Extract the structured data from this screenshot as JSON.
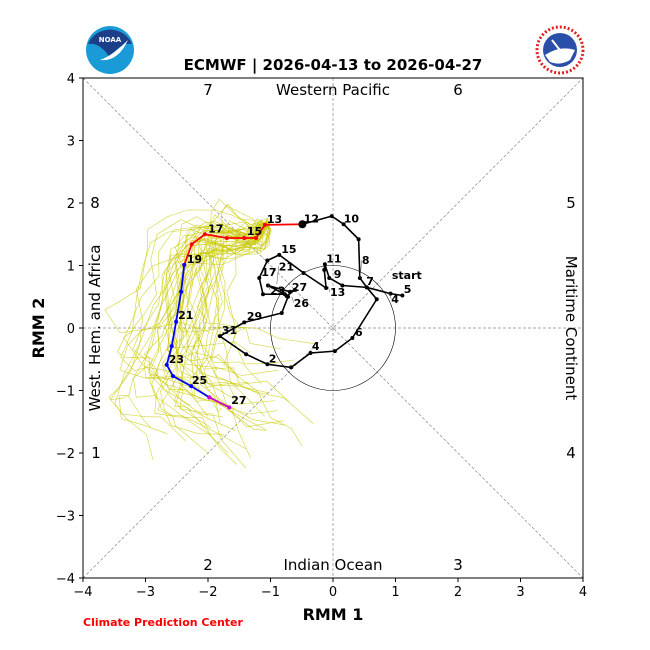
{
  "chart_data": {
    "type": "line",
    "title": "ECMWF | 2026-04-13 to 2026-04-27",
    "xlabel": "RMM 1",
    "ylabel": "RMM 2",
    "xlim": [
      -4,
      4
    ],
    "ylim": [
      -4,
      4
    ],
    "xticks": [
      -4,
      -3,
      -2,
      -1,
      0,
      1,
      2,
      3,
      4
    ],
    "yticks": [
      -4,
      -3,
      -2,
      -1,
      0,
      1,
      2,
      3,
      4
    ],
    "unit_circle_radius": 1,
    "regions": {
      "top": "Western Pacific",
      "bottom": "Indian Ocean",
      "left": "West. Hem. and Africa",
      "right": "Maritime Continent"
    },
    "phase_numbers": {
      "top_left": "7",
      "top_right": "6",
      "left_upper": "8",
      "right_upper": "5",
      "left_lower": "1",
      "right_lower": "4",
      "bottom_left": "2",
      "bottom_right": "3"
    },
    "credit": "Climate Prediction Center",
    "logos": {
      "left": "NOAA",
      "right": "NATIONAL WEATHER SERVICE"
    },
    "colors": {
      "observed": "#000000",
      "forecast_week1": "#ff0000",
      "forecast_week2": "#0000ff",
      "forecast_week3": "#cc00cc",
      "ensemble": "#c8c800"
    },
    "observed": [
      [
        1.11,
        0.52
      ],
      [
        0.92,
        0.55
      ],
      [
        0.54,
        0.65
      ],
      [
        0.15,
        0.68
      ],
      [
        -0.06,
        0.8
      ],
      [
        -0.13,
        1.02
      ],
      [
        -0.14,
        0.93
      ],
      [
        -0.11,
        0.64
      ],
      [
        -0.47,
        0.88
      ],
      [
        -0.86,
        1.17
      ],
      [
        -1.05,
        1.08
      ],
      [
        -1.18,
        0.8
      ],
      [
        -1.12,
        0.54
      ],
      [
        -0.77,
        0.54
      ],
      [
        -1.04,
        0.68
      ],
      [
        -0.69,
        0.58
      ],
      [
        -0.61,
        0.61
      ],
      [
        -0.74,
        0.51
      ],
      [
        -0.72,
        0.5
      ],
      [
        -0.82,
        0.24
      ],
      [
        -1.42,
        0.09
      ],
      [
        -1.81,
        -0.13
      ],
      [
        -1.39,
        -0.42
      ],
      [
        -1.05,
        -0.58
      ],
      [
        -0.67,
        -0.63
      ],
      [
        -0.36,
        -0.4
      ],
      [
        0.03,
        -0.37
      ],
      [
        0.31,
        -0.16
      ],
      [
        0.7,
        0.46
      ],
      [
        0.54,
        0.65
      ],
      [
        0.43,
        0.8
      ],
      [
        0.41,
        1.42
      ],
      [
        0.17,
        1.66
      ],
      [
        -0.02,
        1.79
      ],
      [
        -0.49,
        1.66
      ]
    ],
    "observed_labels": [
      {
        "text": "start",
        "x": 0.91,
        "y": 0.75
      },
      {
        "text": "4",
        "x": 0.9,
        "y": 0.56
      },
      {
        "text": "5",
        "x": 1.1,
        "y": 0.53
      },
      {
        "text": "7",
        "x": 0.5,
        "y": 0.66
      },
      {
        "text": "8",
        "x": 0.43,
        "y": 0.8
      },
      {
        "text": "9",
        "x": -0.02,
        "y": 0.77
      },
      {
        "text": "13",
        "x": -0.08,
        "y": 0.67
      },
      {
        "text": "11",
        "x": -0.14,
        "y": 1.02
      },
      {
        "text": "10",
        "x": 0.14,
        "y": 1.66
      },
      {
        "text": "12",
        "x": -0.5,
        "y": 1.66
      },
      {
        "text": "15",
        "x": -0.86,
        "y": 1.17
      },
      {
        "text": "17",
        "x": -1.18,
        "y": 0.8
      },
      {
        "text": "23",
        "x": -1.04,
        "y": 0.7
      },
      {
        "text": "21",
        "x": -0.9,
        "y": 0.7
      },
      {
        "text": "27",
        "x": -0.69,
        "y": 0.56
      },
      {
        "text": "26",
        "x": -0.66,
        "y": 0.5
      },
      {
        "text": "29",
        "x": -1.41,
        "y": 0.1
      },
      {
        "text": "31",
        "x": -1.81,
        "y": -0.13
      },
      {
        "text": "2",
        "x": -1.06,
        "y": -0.58
      },
      {
        "text": "4",
        "x": -0.37,
        "y": -0.38
      },
      {
        "text": "6",
        "x": 0.32,
        "y": -0.16
      }
    ],
    "forecast_week1": [
      [
        -0.49,
        1.66
      ],
      [
        -1.09,
        1.65
      ],
      [
        -1.23,
        1.44
      ],
      [
        -1.42,
        1.44
      ],
      [
        -1.7,
        1.44
      ],
      [
        -2.05,
        1.5
      ],
      [
        -2.26,
        1.34
      ],
      [
        -2.38,
        1.01
      ]
    ],
    "forecast_week2": [
      [
        -2.38,
        1.01
      ],
      [
        -2.43,
        0.58
      ],
      [
        -2.51,
        0.1
      ],
      [
        -2.58,
        -0.29
      ],
      [
        -2.66,
        -0.59
      ],
      [
        -2.56,
        -0.77
      ],
      [
        -2.27,
        -0.93
      ],
      [
        -1.98,
        -1.11
      ]
    ],
    "forecast_week3": [
      [
        -1.98,
        -1.11
      ],
      [
        -1.66,
        -1.27
      ]
    ],
    "forecast_labels": [
      {
        "text": "13",
        "x": -1.09,
        "y": 1.65
      },
      {
        "text": "15",
        "x": -1.41,
        "y": 1.46
      },
      {
        "text": "17",
        "x": -2.03,
        "y": 1.5
      },
      {
        "text": "19",
        "x": -2.37,
        "y": 1.01
      },
      {
        "text": "21",
        "x": -2.51,
        "y": 0.11
      },
      {
        "text": "23",
        "x": -2.66,
        "y": -0.59
      },
      {
        "text": "25",
        "x": -2.29,
        "y": -0.93
      },
      {
        "text": "27",
        "x": -1.66,
        "y": -1.25
      }
    ],
    "ensemble_members": 50
  }
}
